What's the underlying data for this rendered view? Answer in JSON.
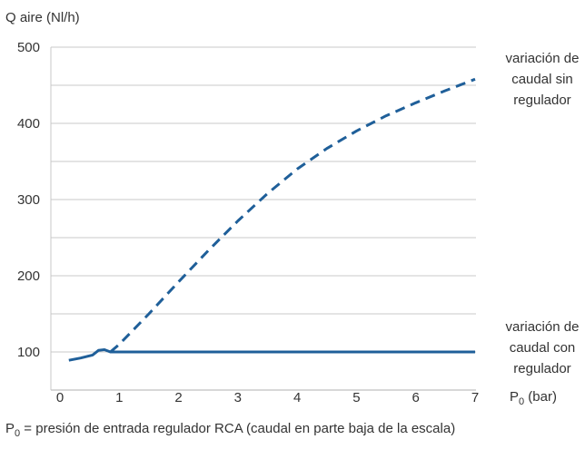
{
  "chart_data": {
    "type": "line",
    "ylabel": "Q aire (Nl/h)",
    "xlabel": {
      "main": "P",
      "sub": "0",
      "unit": " (bar)"
    },
    "footer": {
      "main": "P",
      "sub": "0",
      "rest": " = presión de entrada regulador RCA (caudal en parte baja de la escala)"
    },
    "xlim": [
      0,
      7
    ],
    "ylim": [
      50,
      500
    ],
    "x_ticks": [
      "0",
      "1",
      "2",
      "3",
      "4",
      "5",
      "6",
      "7"
    ],
    "y_ticks": [
      "100",
      "200",
      "300",
      "400",
      "500"
    ],
    "grid": "horizontal",
    "series": [
      {
        "label_lines": [
          "variación de",
          "caudal sin",
          "regulador"
        ],
        "style": "dashed",
        "color": "#1f5f99",
        "x": [
          0.85,
          1.0,
          1.5,
          2.0,
          2.5,
          3.0,
          3.5,
          4.0,
          4.5,
          5.0,
          5.5,
          6.0,
          6.5,
          7.0
        ],
        "y": [
          100,
          110,
          150,
          192,
          233,
          272,
          308,
          340,
          367,
          390,
          410,
          427,
          443,
          458
        ]
      },
      {
        "label_lines": [
          "variación de",
          "caudal con",
          "regulador"
        ],
        "style": "solid",
        "color": "#1f5f99",
        "x": [
          0.15,
          0.35,
          0.55,
          0.65,
          0.75,
          0.85,
          1.0,
          2.0,
          3.0,
          4.0,
          5.0,
          6.0,
          7.0
        ],
        "y": [
          89,
          92,
          96,
          102,
          103,
          100,
          100,
          100,
          100,
          100,
          100,
          100,
          100
        ]
      }
    ]
  }
}
